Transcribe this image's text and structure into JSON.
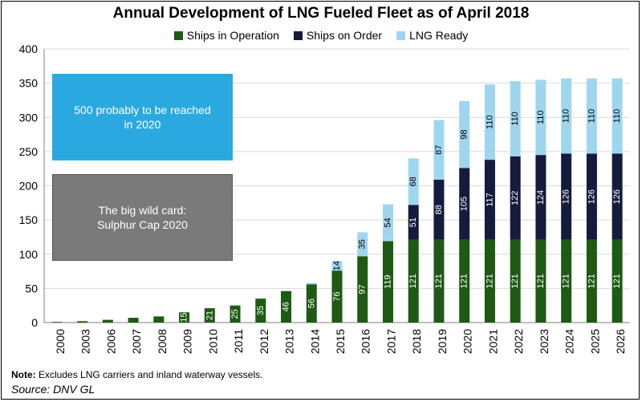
{
  "colors": {
    "operation": "#1e5a14",
    "order": "#141b3d",
    "ready": "#9fd6ef",
    "box_blue": "#2aa9e0",
    "box_gray": "#7a7a7a",
    "grid": "#d9d9d9"
  },
  "annotations": {
    "blue_box": "500 probably to be reached in 2020",
    "gray_box": "The big wild card: Sulphur Cap 2020"
  },
  "footer": {
    "note_label": "Note:",
    "note_text": " Excludes LNG carriers and inland waterway vessels.",
    "source": "Source: DNV GL"
  },
  "chart_data": {
    "type": "bar",
    "stacked": true,
    "title": "Annual Development of LNG Fueled Fleet as of April 2018",
    "categories": [
      "2000",
      "2003",
      "2006",
      "2007",
      "2008",
      "2009",
      "2010",
      "2011",
      "2012",
      "2013",
      "2014",
      "2015",
      "2016",
      "2017",
      "2018",
      "2019",
      "2020",
      "2021",
      "2022",
      "2023",
      "2024",
      "2025",
      "2026"
    ],
    "series": [
      {
        "name": "Ships in Operation",
        "color": "#1e5a14",
        "values": [
          1,
          2,
          4,
          7,
          9,
          15,
          21,
          25,
          35,
          46,
          56,
          76,
          97,
          119,
          121,
          121,
          121,
          121,
          121,
          121,
          121,
          121,
          121
        ]
      },
      {
        "name": "Ships on Order",
        "color": "#141b3d",
        "values": [
          0,
          0,
          0,
          0,
          0,
          0,
          0,
          0,
          0,
          0,
          0,
          0,
          0,
          0,
          51,
          88,
          105,
          117,
          122,
          124,
          126,
          126,
          126
        ]
      },
      {
        "name": "LNG Ready",
        "color": "#9fd6ef",
        "values": [
          0,
          0,
          0,
          0,
          0,
          0,
          0,
          0,
          0,
          0,
          2,
          14,
          35,
          54,
          68,
          87,
          98,
          110,
          110,
          110,
          110,
          110,
          110
        ]
      }
    ],
    "value_labels": [
      [
        "",
        "",
        "",
        "",
        "",
        "15",
        "21",
        "25",
        "35",
        "46",
        "56",
        "76",
        "97",
        "119",
        "121",
        "121",
        "121",
        "121",
        "121",
        "121",
        "121",
        "121",
        "121"
      ],
      [
        "",
        "",
        "",
        "",
        "",
        "",
        "",
        "",
        "",
        "",
        "",
        "",
        "",
        "",
        "51",
        "88",
        "105",
        "117",
        "122",
        "124",
        "126",
        "126",
        "126"
      ],
      [
        "",
        "",
        "",
        "",
        "",
        "",
        "",
        "",
        "",
        "",
        "",
        "14",
        "35",
        "54",
        "68",
        "87",
        "98",
        "110",
        "110",
        "110",
        "110",
        "110",
        "110"
      ]
    ],
    "ylim": [
      0,
      400
    ],
    "yticks": [
      0,
      50,
      100,
      150,
      200,
      250,
      300,
      350,
      400
    ],
    "grid": true,
    "legend": "top"
  }
}
